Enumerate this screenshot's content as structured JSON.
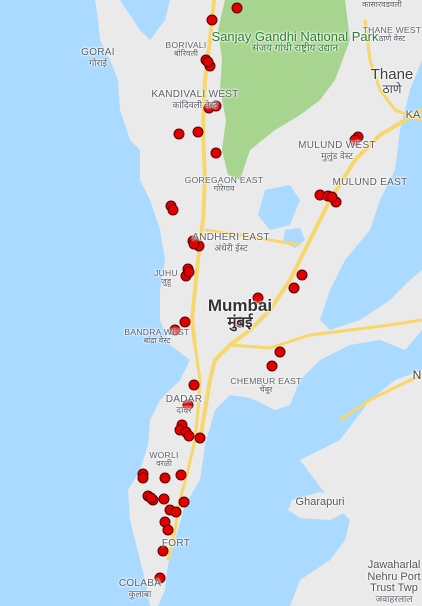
{
  "map": {
    "colors": {
      "water": "#aadaff",
      "land": "#eaeaea",
      "park": "#a7d48e",
      "highway": "#f7d66a",
      "marker": "#e00000",
      "marker_outline": "#5a0000"
    },
    "labels": [
      {
        "id": "gorai",
        "en": "GORAI",
        "hi": "गोराई",
        "style": ""
      },
      {
        "id": "borivali",
        "en": "BORIVALI",
        "hi": "बोरिवली",
        "style": "small"
      },
      {
        "id": "sgnp",
        "en": "Sanjay Gandhi National Park",
        "hi": "संजय गांधी राष्ट्रीय उद्यान",
        "style": "park"
      },
      {
        "id": "kasara",
        "en": "",
        "hi": "कासारवडवली",
        "style": "small"
      },
      {
        "id": "thane-west",
        "en": "THANE WEST",
        "hi": "ठाणे वेस्ट",
        "style": "small"
      },
      {
        "id": "thane",
        "en": "Thane",
        "hi": "ठाणे",
        "style": "mid"
      },
      {
        "id": "kandivali-west",
        "en": "KANDIVALI WEST",
        "hi": "कांदिवली वेस्ट",
        "style": ""
      },
      {
        "id": "mulund-west",
        "en": "MULUND WEST",
        "hi": "मुलुंड वेस्ट",
        "style": ""
      },
      {
        "id": "goregaon-east",
        "en": "GOREGAON EAST",
        "hi": "गोरेगाव",
        "style": "small"
      },
      {
        "id": "mulund-east",
        "en": "MULUND EAST",
        "hi": "",
        "style": ""
      },
      {
        "id": "andheri-east",
        "en": "ANDHERI EAST",
        "hi": "अंधेरी ईस्ट",
        "style": ""
      },
      {
        "id": "juhu",
        "en": "JUHU",
        "hi": "जुहू",
        "style": "small"
      },
      {
        "id": "mumbai",
        "en": "Mumbai",
        "hi": "मुंबई",
        "style": "city"
      },
      {
        "id": "bandra-west",
        "en": "BANDRA WEST",
        "hi": "बांद्रा वेस्ट",
        "style": "small"
      },
      {
        "id": "chembur-east",
        "en": "CHEMBUR EAST",
        "hi": "चेंबूर",
        "style": "small"
      },
      {
        "id": "dadar",
        "en": "DADAR",
        "hi": "दादर",
        "style": ""
      },
      {
        "id": "worli",
        "en": "WORLI",
        "hi": "वरळी",
        "style": "small"
      },
      {
        "id": "gharapuri",
        "en": "Gharapuri",
        "hi": "",
        "style": "plain"
      },
      {
        "id": "fort",
        "en": "FORT",
        "hi": "",
        "style": ""
      },
      {
        "id": "jawaharlal",
        "en": "Jawaharlal Nehru Port Trust Twp",
        "hi": "जवाहरलाल",
        "style": "plain"
      },
      {
        "id": "colaba",
        "en": "COLABA",
        "hi": "कुलाबा",
        "style": ""
      },
      {
        "id": "ka",
        "en": "KA",
        "hi": "",
        "style": "plain"
      },
      {
        "id": "n",
        "en": "N",
        "hi": "",
        "style": "sea"
      }
    ],
    "marker_count": 62
  }
}
